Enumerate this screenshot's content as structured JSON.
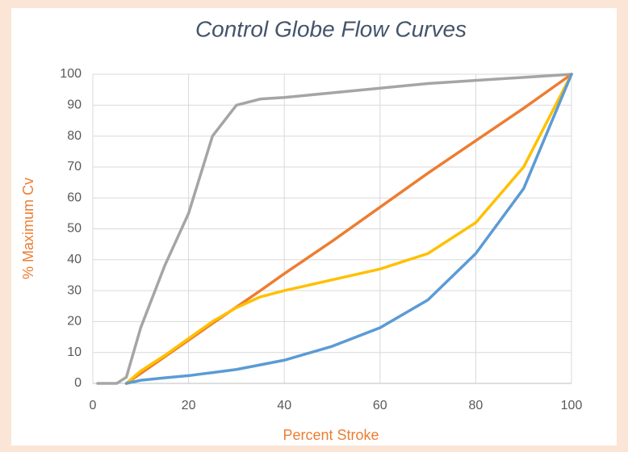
{
  "chart_data": {
    "type": "line",
    "title": "Control Globe Flow Curves",
    "x_label": "Percent Stroke",
    "y_label": "% Maximum Cv",
    "x": [
      1,
      5,
      7,
      10,
      15,
      20,
      25,
      30,
      35,
      40,
      50,
      60,
      70,
      80,
      90,
      100
    ],
    "series": [
      {
        "color": "#a5a5a5",
        "values": [
          0,
          0,
          2,
          18,
          38,
          55,
          80,
          90,
          92,
          92.5,
          94,
          95.5,
          97,
          98,
          99,
          100
        ]
      },
      {
        "color": "#ed7d31",
        "values": [
          null,
          null,
          0,
          3.2,
          8.6,
          14,
          19.4,
          24.7,
          30,
          35.5,
          46,
          57,
          68,
          78.5,
          89,
          100
        ]
      },
      {
        "color": "#ffc000",
        "values": [
          null,
          null,
          0,
          4,
          9,
          14.5,
          20,
          24.5,
          28,
          30,
          33.5,
          37,
          42,
          52,
          70,
          100
        ]
      },
      {
        "color": "#5b9bd5",
        "values": [
          null,
          null,
          0,
          1,
          1.8,
          2.5,
          3.5,
          4.5,
          6,
          7.5,
          12,
          18,
          27,
          42,
          63,
          100
        ]
      }
    ],
    "xlim": [
      0,
      100
    ],
    "xticks": [
      0,
      20,
      40,
      60,
      80,
      100
    ],
    "ylim": [
      0,
      100
    ],
    "yticks": [
      0,
      10,
      20,
      30,
      40,
      50,
      60,
      70,
      80,
      90,
      100
    ],
    "grid": true
  }
}
